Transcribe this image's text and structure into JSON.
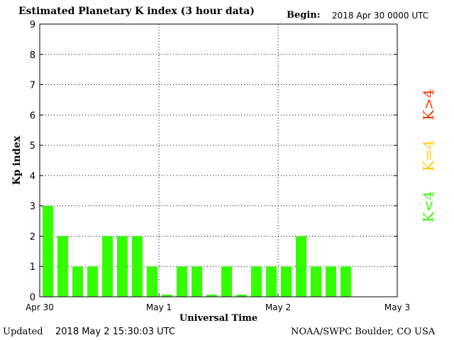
{
  "header": {
    "title": "Estimated Planetary K index (3 hour data)",
    "begin_label": "Begin:",
    "begin_value": "2018 Apr 30 0000 UTC"
  },
  "footer": {
    "updated_label": "Updated",
    "updated_value": "2018 May  2 15:30:03 UTC",
    "credit": "NOAA/SWPC Boulder, CO USA"
  },
  "legend": {
    "high": {
      "label": "K>4",
      "color": "#ff3300"
    },
    "equal": {
      "label": "K=4",
      "color": "#ffcc00"
    },
    "low": {
      "label": "K<4",
      "color": "#33ff00"
    }
  },
  "colors": {
    "bar": "#33ff00",
    "grid": "#000000"
  },
  "chart_data": {
    "type": "bar",
    "title": "Estimated Planetary K index (3 hour data)",
    "xlabel": "Universal Time",
    "ylabel": "Kp index",
    "ylim": [
      0,
      9
    ],
    "yticks": [
      "0",
      "1",
      "2",
      "3",
      "4",
      "5",
      "6",
      "7",
      "8",
      "9"
    ],
    "xticks": [
      "Apr 30",
      "May 1",
      "May 2",
      "May 3"
    ],
    "grid": true,
    "slots_total": 24,
    "values": [
      3,
      2,
      1,
      1,
      2,
      2,
      2,
      1,
      0.07,
      1,
      1,
      0.07,
      1,
      0.07,
      1,
      1,
      1,
      2,
      1,
      1,
      1
    ]
  }
}
